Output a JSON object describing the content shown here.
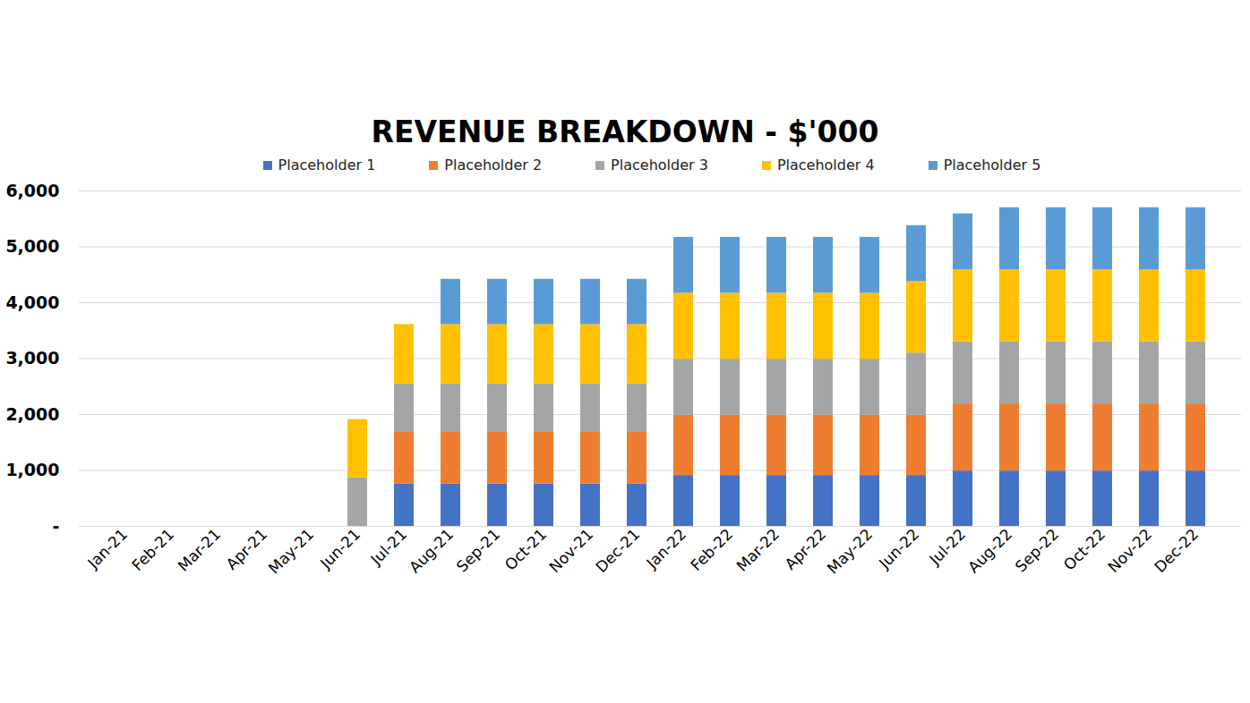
{
  "chart_data": {
    "type": "bar",
    "title": "REVENUE BREAKDOWN - $'000",
    "stacked": true,
    "grid": true,
    "legend": "top",
    "categories": [
      "Jan-21",
      "Feb-21",
      "Mar-21",
      "Apr-21",
      "May-21",
      "Jun-21",
      "Jul-21",
      "Aug-21",
      "Sep-21",
      "Oct-21",
      "Nov-21",
      "Dec-21",
      "Jan-22",
      "Feb-22",
      "Mar-22",
      "Apr-22",
      "May-22",
      "Jun-22",
      "Jul-22",
      "Aug-22",
      "Sep-22",
      "Oct-22",
      "Nov-22",
      "Dec-22"
    ],
    "series": [
      {
        "name": "Placeholder 1",
        "color": "#4472c4",
        "values": [
          0,
          0,
          0,
          0,
          0,
          0,
          760,
          760,
          760,
          760,
          760,
          760,
          910,
          910,
          910,
          910,
          910,
          910,
          990,
          990,
          990,
          990,
          990,
          990
        ]
      },
      {
        "name": "Placeholder 2",
        "color": "#ed7d31",
        "values": [
          0,
          0,
          0,
          0,
          0,
          0,
          920,
          920,
          920,
          920,
          920,
          920,
          1080,
          1080,
          1080,
          1080,
          1080,
          1080,
          1200,
          1200,
          1200,
          1200,
          1200,
          1200
        ]
      },
      {
        "name": "Placeholder 3",
        "color": "#a5a5a5",
        "values": [
          0,
          0,
          0,
          0,
          0,
          870,
          870,
          870,
          870,
          870,
          870,
          870,
          1000,
          1000,
          1000,
          1000,
          1000,
          1110,
          1110,
          1110,
          1110,
          1110,
          1110,
          1110
        ]
      },
      {
        "name": "Placeholder 4",
        "color": "#ffc000",
        "values": [
          0,
          0,
          0,
          0,
          0,
          1040,
          1060,
          1060,
          1060,
          1060,
          1060,
          1060,
          1180,
          1180,
          1180,
          1180,
          1180,
          1280,
          1290,
          1290,
          1290,
          1290,
          1290,
          1290
        ]
      },
      {
        "name": "Placeholder 5",
        "color": "#5b9bd5",
        "values": [
          0,
          0,
          0,
          0,
          0,
          0,
          0,
          810,
          810,
          810,
          810,
          810,
          1000,
          1000,
          1000,
          1000,
          1000,
          1000,
          1000,
          1110,
          1110,
          1110,
          1110,
          1110
        ]
      }
    ],
    "ylim": [
      0,
      6000
    ],
    "yticks": [
      {
        "value": 0,
        "label": "-"
      },
      {
        "value": 1000,
        "label": "1,000"
      },
      {
        "value": 2000,
        "label": "2,000"
      },
      {
        "value": 3000,
        "label": "3,000"
      },
      {
        "value": 4000,
        "label": "4,000"
      },
      {
        "value": 5000,
        "label": "5,000"
      },
      {
        "value": 6000,
        "label": "6,000"
      }
    ]
  }
}
